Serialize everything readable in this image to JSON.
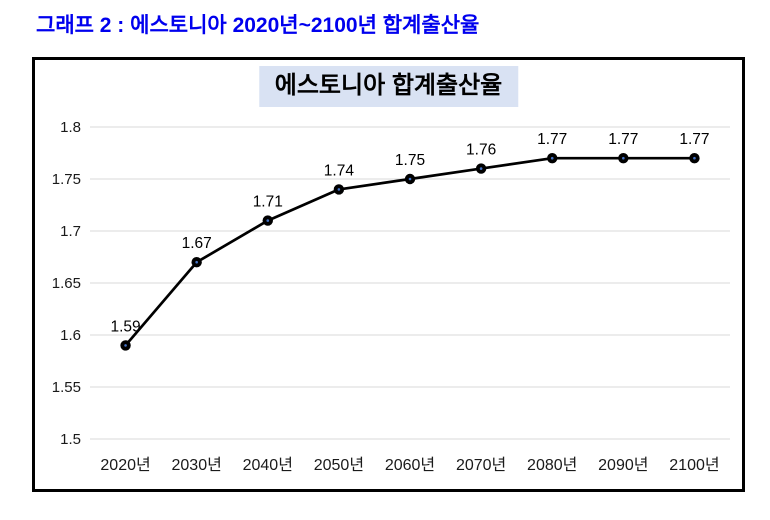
{
  "header": {
    "title": "그래프 2 : 에스토니아 2020년~2100년 합계출산율"
  },
  "chart": {
    "title": "에스토니아 합계출산율"
  },
  "colors": {
    "header_text": "#0000EE",
    "chart_title_bg": "#D9E2F3",
    "chart_border": "#000000",
    "line": "#000000",
    "marker_fill": "#000000",
    "marker_center": "#4472C4",
    "gridline": "#D9D9D9"
  },
  "chart_data": {
    "type": "line",
    "title": "에스토니아 합계출산율",
    "categories": [
      "2020년",
      "2030년",
      "2040년",
      "2050년",
      "2060년",
      "2070년",
      "2080년",
      "2090년",
      "2100년"
    ],
    "series": [
      {
        "name": "합계출산율",
        "values": [
          1.59,
          1.67,
          1.71,
          1.74,
          1.75,
          1.76,
          1.77,
          1.77,
          1.77
        ]
      }
    ],
    "point_labels": [
      "1.59",
      "1.67",
      "1.71",
      "1.74",
      "1.75",
      "1.76",
      "1.77",
      "1.77",
      "1.77"
    ],
    "xlabel": "",
    "ylabel": "",
    "ylim": [
      1.5,
      1.8
    ],
    "ytick_values": [
      1.5,
      1.55,
      1.6,
      1.65,
      1.7,
      1.75,
      1.8
    ],
    "ytick_labels": [
      "1.5",
      "1.55",
      "1.6",
      "1.65",
      "1.7",
      "1.75",
      "1.8"
    ],
    "grid": true,
    "legend_position": "none"
  }
}
